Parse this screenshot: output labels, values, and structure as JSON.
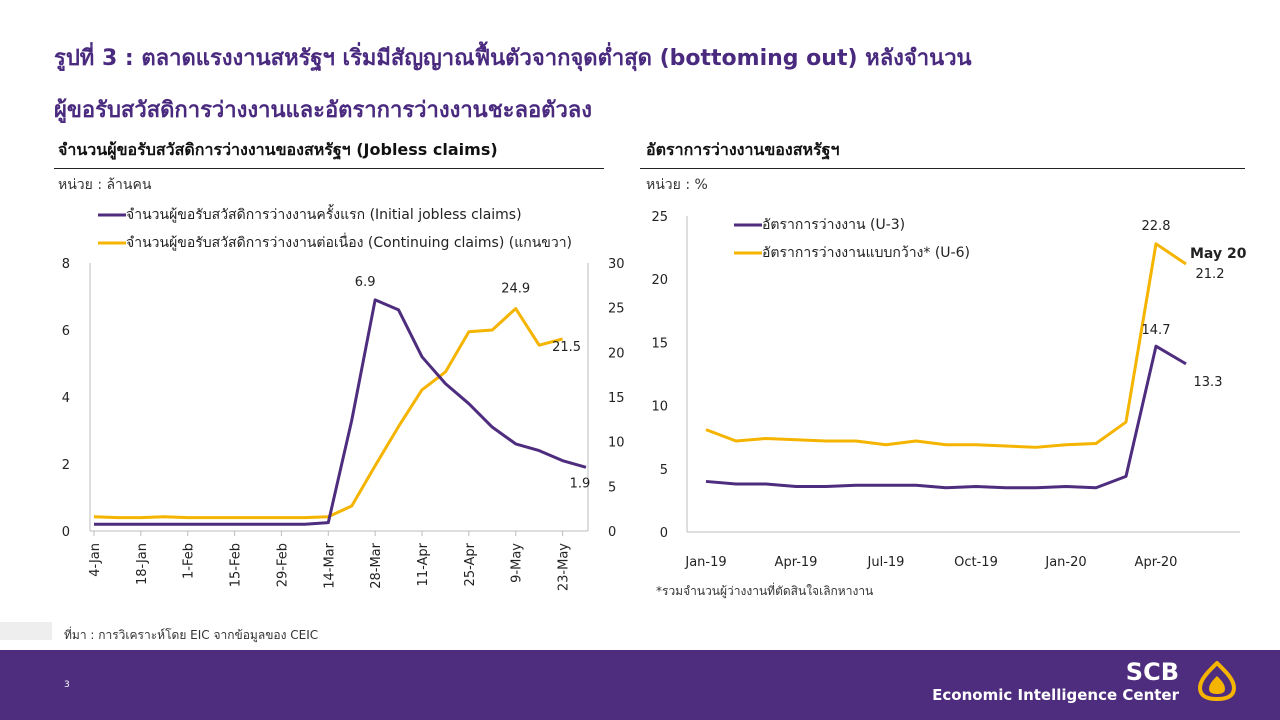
{
  "title_line1": "รูปที่ 3 : ตลาดแรงงานสหรัฐฯ เริ่มมีสัญญาณฟื้นตัวจากจุดต่ำสุด (bottoming out) หลังจำนวน",
  "title_line2": "ผู้ขอรับสวัสดิการว่างงานและอัตราการว่างงานชะลอตัวลง",
  "left_panel": {
    "title": "จำนวนผู้ขอรับสวัสดิการว่างงานของสหรัฐฯ (Jobless claims)",
    "unit": "หน่วย : ล้านคน"
  },
  "right_panel": {
    "title": "อัตราการว่างงานของสหรัฐฯ",
    "unit": "หน่วย : %"
  },
  "right_note": "*รวมจำนวนผู้ว่างงานที่ตัดสินใจเลิกหางาน",
  "source": "ที่มา : การวิเคราะห์โดย EIC จากข้อมูลของ CEIC",
  "page_number": "3",
  "brand_name": "SCB",
  "brand_sub": "Economic Intelligence Center",
  "colors": {
    "purple": "#4e2d7f",
    "gold": "#f5b400",
    "title": "#4a2a7f"
  },
  "chart_data": [
    {
      "type": "line",
      "x_tick_labels": [
        "4-Jan",
        "18-Jan",
        "1-Feb",
        "15-Feb",
        "29-Feb",
        "14-Mar",
        "28-Mar",
        "11-Apr",
        "25-Apr",
        "9-May",
        "23-May"
      ],
      "x": [
        "4-Jan",
        "11-Jan",
        "18-Jan",
        "25-Jan",
        "1-Feb",
        "8-Feb",
        "15-Feb",
        "22-Feb",
        "29-Feb",
        "7-Mar",
        "14-Mar",
        "21-Mar",
        "28-Mar",
        "4-Apr",
        "11-Apr",
        "18-Apr",
        "25-Apr",
        "2-May",
        "9-May",
        "16-May",
        "23-May",
        "30-May"
      ],
      "ylim_left": [
        0,
        8
      ],
      "yticks_left": [
        0,
        2,
        4,
        6,
        8
      ],
      "ylim_right": [
        0,
        30
      ],
      "yticks_right": [
        0,
        5,
        10,
        15,
        20,
        25,
        30
      ],
      "grid": false,
      "legend_position": "top-left",
      "series": [
        {
          "name": "จำนวนผู้ขอรับสวัสดิการว่างงานครั้งแรก (Initial jobless claims)",
          "axis": "left",
          "values": [
            0.2,
            0.2,
            0.2,
            0.2,
            0.2,
            0.2,
            0.2,
            0.2,
            0.2,
            0.2,
            0.25,
            3.3,
            6.9,
            6.6,
            5.2,
            4.4,
            3.8,
            3.1,
            2.6,
            2.4,
            2.1,
            1.9
          ]
        },
        {
          "name": "จำนวนผู้ขอรับสวัสดิการว่างงานต่อเนื่อง (Continuing claims) (แกนขวา)",
          "axis": "right",
          "values": [
            1.6,
            1.5,
            1.5,
            1.6,
            1.5,
            1.5,
            1.5,
            1.5,
            1.5,
            1.5,
            1.6,
            2.8,
            7.3,
            11.7,
            15.8,
            17.8,
            22.3,
            22.5,
            24.9,
            20.8,
            21.5,
            null
          ]
        }
      ],
      "annotations": [
        {
          "text": "6.9",
          "series": 0,
          "index": 12
        },
        {
          "text": "24.9",
          "series": 1,
          "index": 18
        },
        {
          "text": "21.5",
          "series": 1,
          "index": 20
        },
        {
          "text": "1.9",
          "series": 0,
          "index": 21
        }
      ]
    },
    {
      "type": "line",
      "x": [
        "Jan-19",
        "Feb-19",
        "Mar-19",
        "Apr-19",
        "May-19",
        "Jun-19",
        "Jul-19",
        "Aug-19",
        "Sep-19",
        "Oct-19",
        "Nov-19",
        "Dec-19",
        "Jan-20",
        "Feb-20",
        "Mar-20",
        "Apr-20",
        "May-20"
      ],
      "x_tick_labels": [
        "Jan-19",
        "Apr-19",
        "Jul-19",
        "Oct-19",
        "Jan-20",
        "Apr-20"
      ],
      "ylim": [
        0,
        25
      ],
      "yticks": [
        0,
        5,
        10,
        15,
        20,
        25
      ],
      "grid": false,
      "legend_position": "top-left",
      "series": [
        {
          "name": "อัตราการว่างงาน (U-3)",
          "values": [
            4.0,
            3.8,
            3.8,
            3.6,
            3.6,
            3.7,
            3.7,
            3.7,
            3.5,
            3.6,
            3.5,
            3.5,
            3.6,
            3.5,
            4.4,
            14.7,
            13.3
          ]
        },
        {
          "name": "อัตราการว่างงานแบบกว้าง* (U-6)",
          "values": [
            8.1,
            7.2,
            7.4,
            7.3,
            7.2,
            7.2,
            6.9,
            7.2,
            6.9,
            6.9,
            6.8,
            6.7,
            6.9,
            7.0,
            8.7,
            22.8,
            21.2
          ]
        }
      ],
      "annotations": [
        {
          "text": "22.8",
          "series": 1,
          "index": 15
        },
        {
          "text": "21.2",
          "series": 1,
          "index": 16
        },
        {
          "text": "14.7",
          "series": 0,
          "index": 15
        },
        {
          "text": "13.3",
          "series": 0,
          "index": 16
        },
        {
          "text": "May 20",
          "series": 1,
          "index": 16
        }
      ]
    }
  ]
}
